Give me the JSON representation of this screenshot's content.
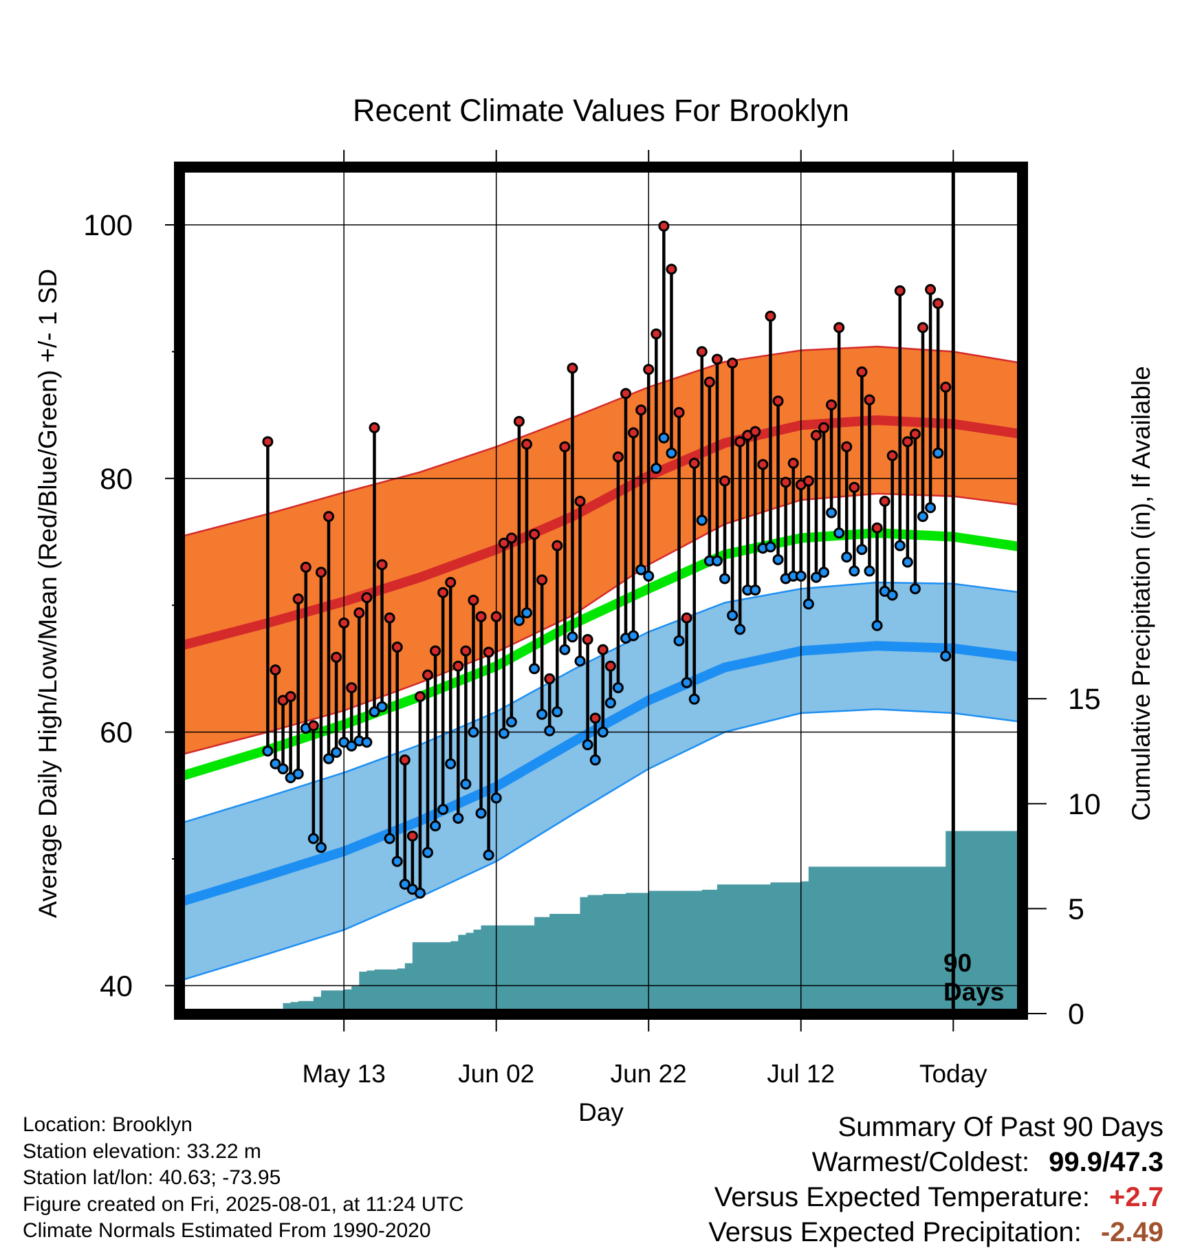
{
  "chart_data": {
    "type": "line",
    "title": "Recent Climate Values For Brooklyn",
    "xlabel": "Day",
    "ylabel": "Average Daily High/Low/Mean (Red/Blue/Green) +/- 1 SD",
    "ylabel_right": "Cumulative Precipitation (in), If Available",
    "ylim": [
      37.8,
      104.5
    ],
    "y2lim": [
      0,
      40.3
    ],
    "y_ticks": [
      "40",
      "60",
      "80",
      "100"
    ],
    "y_minor_ticks": [
      50,
      70,
      90
    ],
    "y2_ticks": [
      "0",
      "5",
      "10",
      "15"
    ],
    "x_range": [
      -101.5,
      9
    ],
    "x_ticks": [
      {
        "label": "May 13",
        "day": -80
      },
      {
        "label": "Jun 02",
        "day": -60
      },
      {
        "label": "Jun 22",
        "day": -40
      },
      {
        "label": "Jul 12",
        "day": -20
      },
      {
        "label": "Today",
        "day": 0
      }
    ],
    "today_marker_label": "90 Days",
    "colors": {
      "high_band": "#f47a30",
      "high_line": "#d42a2a",
      "low_band": "#86c1e8",
      "low_line": "#1e8ff2",
      "mean_line": "#00e600",
      "precip": "#4a9aa4",
      "point_high": "#d42a2a",
      "point_low": "#1e8ff2"
    },
    "normals_x": [
      -101.5,
      -90,
      -80,
      -70,
      -60,
      -50,
      -40,
      -30,
      -20,
      -10,
      0,
      9
    ],
    "normal_high": [
      66.8,
      68.6,
      70.3,
      72.2,
      74.4,
      77.0,
      80.2,
      82.8,
      84.2,
      84.6,
      84.3,
      83.5
    ],
    "normal_high_sd": [
      8.6,
      8.6,
      8.6,
      8.3,
      8.1,
      7.8,
      7.0,
      6.4,
      5.9,
      5.8,
      5.7,
      5.6
    ],
    "normal_low": [
      46.6,
      48.7,
      50.6,
      53.0,
      55.7,
      59.2,
      62.5,
      65.1,
      66.4,
      66.8,
      66.6,
      65.9
    ],
    "normal_low_sd": [
      6.2,
      6.2,
      6.2,
      6.0,
      5.9,
      5.7,
      5.4,
      5.1,
      4.9,
      5.0,
      5.1,
      5.1
    ],
    "normal_mean": [
      56.5,
      58.6,
      60.6,
      62.8,
      65.2,
      68.5,
      71.3,
      74.0,
      75.3,
      75.7,
      75.4,
      74.6
    ],
    "days": [
      -90,
      -89,
      -88,
      -87,
      -86,
      -85,
      -84,
      -83,
      -82,
      -81,
      -80,
      -79,
      -78,
      -77,
      -76,
      -75,
      -74,
      -73,
      -72,
      -71,
      -70,
      -69,
      -68,
      -67,
      -66,
      -65,
      -64,
      -63,
      -62,
      -61,
      -60,
      -59,
      -58,
      -57,
      -56,
      -55,
      -54,
      -53,
      -52,
      -51,
      -50,
      -49,
      -48,
      -47,
      -46,
      -45,
      -44,
      -43,
      -42,
      -41,
      -40,
      -39,
      -38,
      -37,
      -36,
      -35,
      -34,
      -33,
      -32,
      -31,
      -30,
      -29,
      -28,
      -27,
      -26,
      -25,
      -24,
      -23,
      -22,
      -21,
      -20,
      -19,
      -18,
      -17,
      -16,
      -15,
      -14,
      -13,
      -12,
      -11,
      -10,
      -9,
      -8,
      -7,
      -6,
      -5,
      -4,
      -3,
      -2,
      -1
    ],
    "highs": [
      82.9,
      64.9,
      62.5,
      62.8,
      70.5,
      73.0,
      60.5,
      72.6,
      77.0,
      65.9,
      68.6,
      63.5,
      69.4,
      70.6,
      84.0,
      73.2,
      69.0,
      66.7,
      57.8,
      51.8,
      62.8,
      64.5,
      66.4,
      71.0,
      71.8,
      65.2,
      66.4,
      70.4,
      69.1,
      66.3,
      69.1,
      74.9,
      75.3,
      84.5,
      82.7,
      75.6,
      72.0,
      64.2,
      74.7,
      82.5,
      88.7,
      78.2,
      67.3,
      61.1,
      66.5,
      65.2,
      81.7,
      86.7,
      83.6,
      85.4,
      88.6,
      91.4,
      99.9,
      96.5,
      85.2,
      69.0,
      81.2,
      90.0,
      87.6,
      89.4,
      79.8,
      89.1,
      82.9,
      83.4,
      83.7,
      81.1,
      92.8,
      86.1,
      79.7,
      81.2,
      79.5,
      79.8,
      83.4,
      84.0,
      85.8,
      91.9,
      82.5,
      79.3,
      88.4,
      86.2,
      76.1,
      78.2,
      81.8,
      94.8,
      82.9,
      83.5,
      91.9,
      94.9,
      93.8,
      87.2
    ],
    "lows": [
      58.5,
      57.5,
      57.1,
      56.4,
      56.7,
      60.3,
      51.6,
      50.9,
      57.9,
      58.4,
      59.2,
      58.9,
      59.3,
      59.2,
      61.6,
      62.0,
      51.6,
      49.8,
      48.0,
      47.6,
      47.3,
      50.5,
      52.6,
      53.9,
      57.5,
      53.2,
      55.9,
      60.0,
      53.6,
      50.3,
      54.8,
      59.9,
      60.8,
      68.8,
      69.4,
      65.0,
      61.4,
      60.1,
      61.6,
      66.5,
      67.5,
      65.6,
      59.0,
      57.8,
      60.0,
      62.3,
      63.5,
      67.4,
      67.6,
      72.8,
      72.3,
      80.8,
      83.2,
      82.0,
      67.2,
      63.9,
      62.6,
      76.7,
      73.5,
      73.5,
      72.1,
      69.2,
      68.1,
      71.2,
      71.2,
      74.5,
      74.6,
      73.6,
      72.1,
      72.3,
      72.3,
      70.1,
      72.2,
      72.6,
      77.3,
      75.7,
      73.8,
      72.7,
      74.4,
      72.7,
      68.4,
      71.1,
      70.8,
      74.7,
      73.4,
      71.3,
      77.0,
      77.7,
      82.0,
      66.0
    ],
    "precip_days": [
      -90,
      -89,
      -88,
      -87,
      -86,
      -85,
      -84,
      -83,
      -82,
      -81,
      -80,
      -79,
      -78,
      -77,
      -76,
      -75,
      -74,
      -73,
      -72,
      -71,
      -70,
      -69,
      -68,
      -67,
      -66,
      -65,
      -64,
      -63,
      -62,
      -61,
      -60,
      -59,
      -58,
      -57,
      -56,
      -55,
      -54,
      -53,
      -52,
      -51,
      -50,
      -49,
      -48,
      -47,
      -46,
      -45,
      -44,
      -43,
      -42,
      -41,
      -40,
      -39,
      -38,
      -37,
      -36,
      -35,
      -34,
      -33,
      -32,
      -31,
      -30,
      -29,
      -28,
      -27,
      -26,
      -25,
      -24,
      -23,
      -22,
      -21,
      -20,
      -19,
      -18,
      -17,
      -16,
      -15,
      -14,
      -13,
      -12,
      -11,
      -10,
      -9,
      -8,
      -7,
      -6,
      -5,
      -4,
      -3,
      -2,
      -1,
      0,
      9
    ],
    "precip": [
      0,
      0,
      0.5,
      0.55,
      0.6,
      0.6,
      0.8,
      1.1,
      1.1,
      1.1,
      1.15,
      1.3,
      2.0,
      2.05,
      2.1,
      2.1,
      2.1,
      2.15,
      2.4,
      3.4,
      3.4,
      3.4,
      3.4,
      3.4,
      3.45,
      3.75,
      3.85,
      4.0,
      4.2,
      4.2,
      4.2,
      4.2,
      4.2,
      4.2,
      4.2,
      4.6,
      4.6,
      4.75,
      4.75,
      4.75,
      4.75,
      5.55,
      5.65,
      5.65,
      5.7,
      5.7,
      5.7,
      5.75,
      5.75,
      5.75,
      5.85,
      5.85,
      5.85,
      5.85,
      5.85,
      5.85,
      5.85,
      5.9,
      5.9,
      6.15,
      6.15,
      6.15,
      6.15,
      6.15,
      6.15,
      6.15,
      6.25,
      6.25,
      6.25,
      6.25,
      6.3,
      7.0,
      7.0,
      7.0,
      7.0,
      7.0,
      7.0,
      7.0,
      7.0,
      7.0,
      7.0,
      7.0,
      7.0,
      7.0,
      7.0,
      7.0,
      7.0,
      7.0,
      7.0,
      8.7,
      8.7,
      8.7
    ]
  },
  "footer": {
    "location": "Location: Brooklyn",
    "elevation": "Station elevation: 33.22 m",
    "latlon": "Station lat/lon: 40.63; -73.95",
    "created": "Figure created on Fri, 2025-08-01, at 11:24 UTC",
    "normals": "Climate Normals Estimated From 1990-2020"
  },
  "summary": {
    "title": "Summary Of Past 90 Days",
    "warmest_label": "Warmest/Coldest:",
    "warmest_value": "99.9/47.3",
    "temp_label": "Versus Expected Temperature:",
    "temp_value": "+2.7",
    "precip_label": "Versus Expected Precipitation:",
    "precip_value": "-2.49"
  }
}
